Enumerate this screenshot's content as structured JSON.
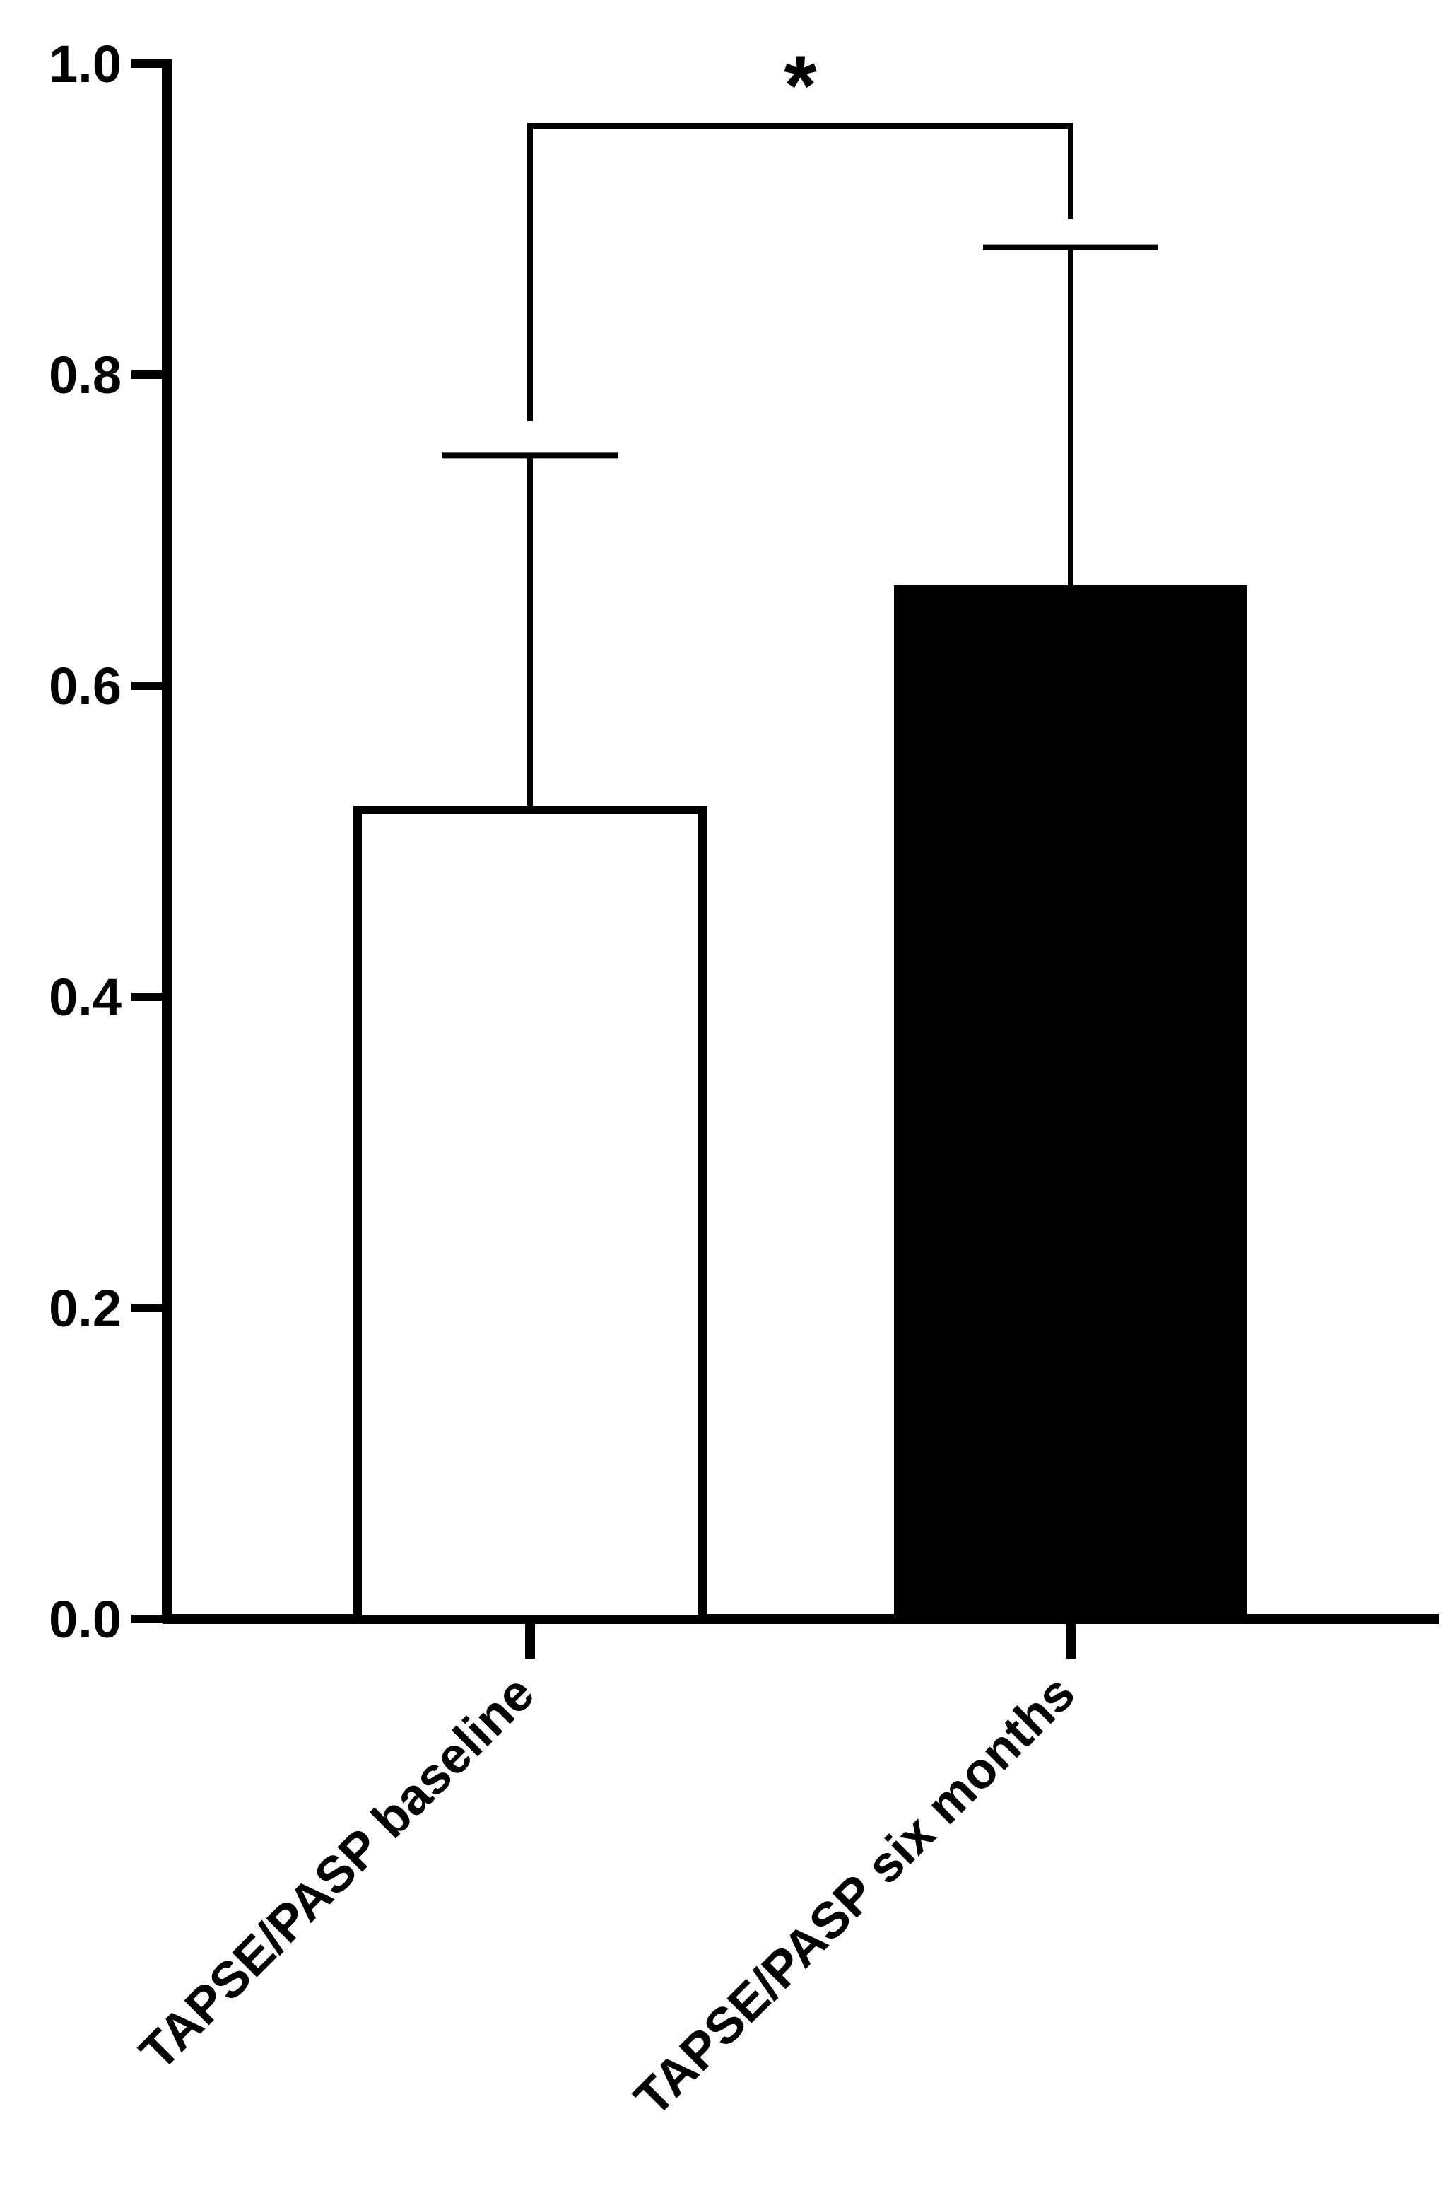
{
  "chart_data": {
    "type": "bar",
    "categories": [
      "TAPSE/PASP baseline",
      "TAPSE/PASP six months"
    ],
    "values": [
      0.52,
      0.662
    ],
    "error_upper": [
      0.748,
      0.882
    ],
    "bar_colors": [
      "#ffffff",
      "#000000"
    ],
    "edge_color": "#000000",
    "ylim": [
      0.0,
      1.0
    ],
    "yticks": [
      "0.0",
      "0.2",
      "0.4",
      "0.6",
      "0.8",
      "1.0"
    ],
    "ytick_values": [
      0.0,
      0.2,
      0.4,
      0.6,
      0.8,
      1.0
    ],
    "xlabel": "",
    "ylabel": "",
    "title": "",
    "grid": false,
    "significance": {
      "label": "*",
      "between": [
        0,
        1
      ],
      "bracket_y": 0.96,
      "left_drop_to": 0.77,
      "right_drop_to": 0.9
    }
  }
}
